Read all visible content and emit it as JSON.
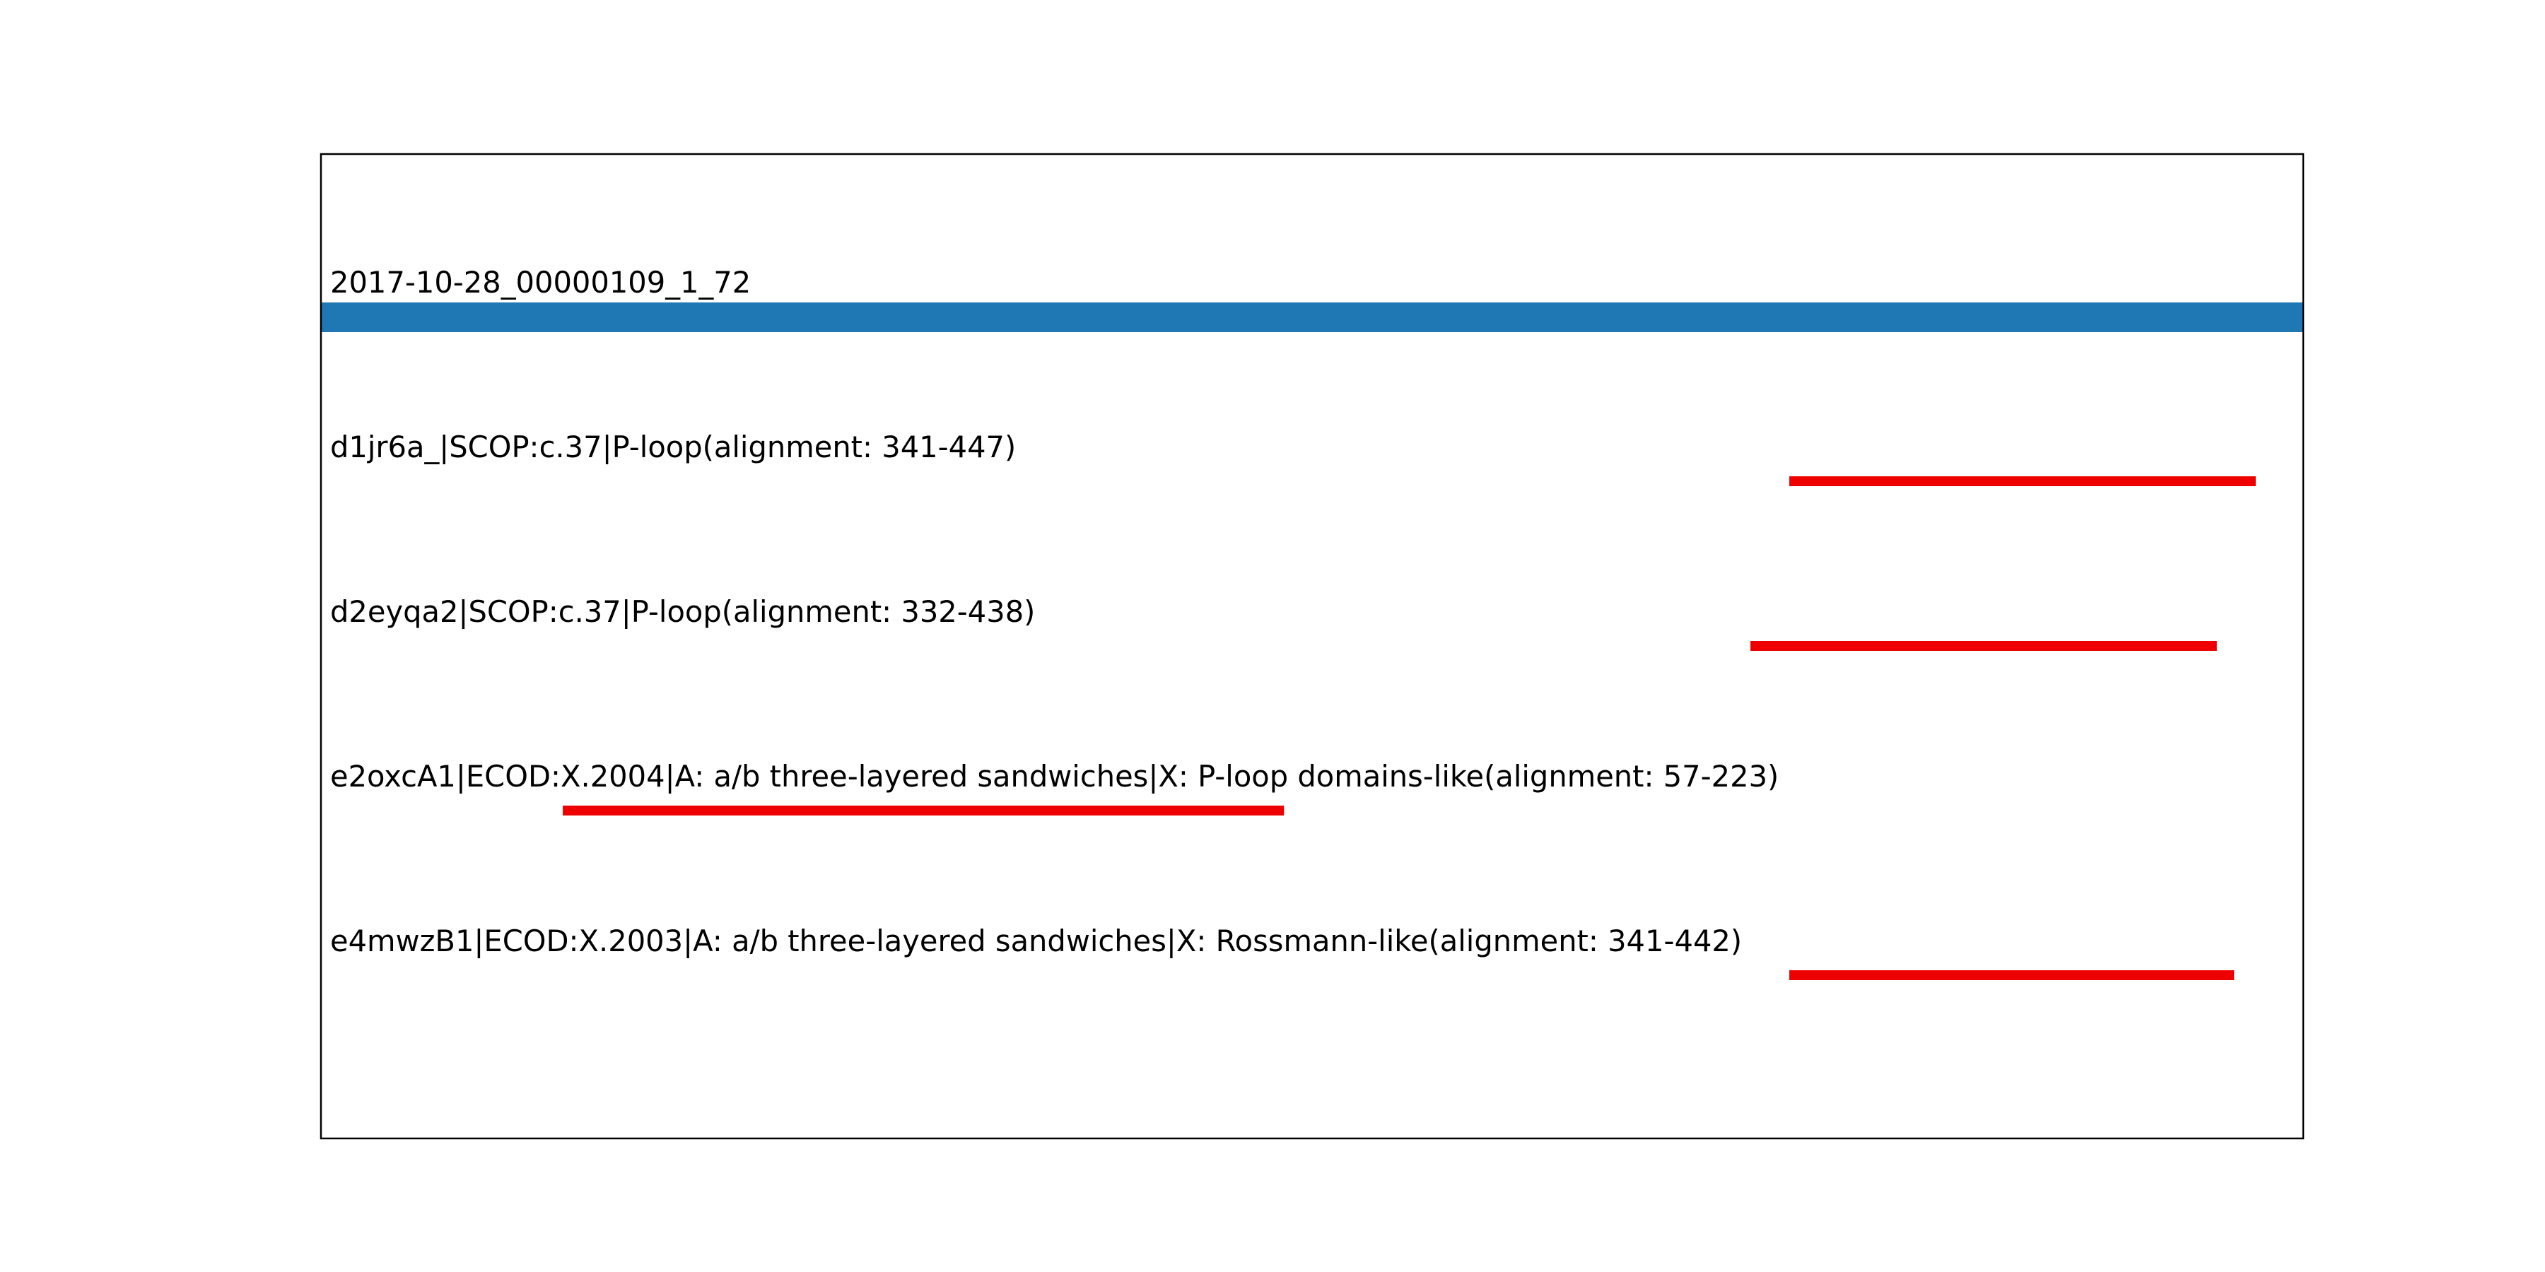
{
  "chart_data": {
    "type": "bar",
    "query": {
      "label": "2017-10-28_00000109_1_72",
      "start": 1,
      "end": 460,
      "color": "#1f77b4"
    },
    "xlim": [
      1,
      460
    ],
    "grid": false,
    "hits": [
      {
        "label": "d1jr6a_|SCOP:c.37|P-loop(alignment: 341-447)",
        "start": 341,
        "end": 449,
        "color": "#ee0000"
      },
      {
        "label": "d2eyqa2|SCOP:c.37|P-loop(alignment: 332-438)",
        "start": 332,
        "end": 440,
        "color": "#ee0000"
      },
      {
        "label": "e2oxcA1|ECOD:X.2004|A: a/b three-layered sandwiches|X: P-loop domains-like(alignment: 57-223)",
        "start": 57,
        "end": 224,
        "color": "#ee0000"
      },
      {
        "label": "e4mwzB1|ECOD:X.2003|A: a/b three-layered sandwiches|X: Rossmann-like(alignment: 341-442)",
        "start": 341,
        "end": 444,
        "color": "#ee0000"
      }
    ]
  }
}
